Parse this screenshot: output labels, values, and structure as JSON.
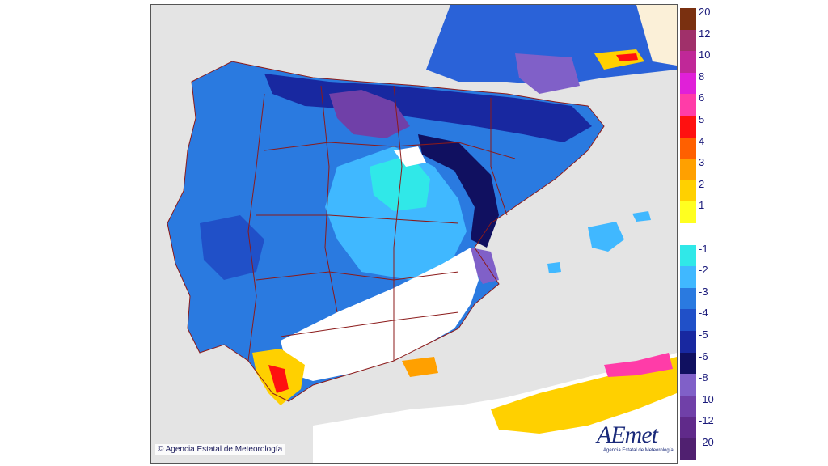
{
  "map": {
    "copyright": "© Agencia Estatal de Meteorología",
    "logo_text": "AEmet",
    "logo_subtitle": "Agencia Estatal de Meteorología"
  },
  "legend": {
    "items": [
      {
        "label": "20",
        "color": "#7a3010"
      },
      {
        "label": "12",
        "color": "#a0306a"
      },
      {
        "label": "10",
        "color": "#c02898"
      },
      {
        "label": "8",
        "color": "#e020d8"
      },
      {
        "label": "6",
        "color": "#ff3ca8"
      },
      {
        "label": "5",
        "color": "#ff1010"
      },
      {
        "label": "4",
        "color": "#ff6000"
      },
      {
        "label": "3",
        "color": "#ffa000"
      },
      {
        "label": "2",
        "color": "#ffd000"
      },
      {
        "label": "1",
        "color": "#ffff20"
      },
      {
        "label": "",
        "color": "#ffffff"
      },
      {
        "label": "-1",
        "color": "#30e8e8"
      },
      {
        "label": "-2",
        "color": "#40b8ff"
      },
      {
        "label": "-3",
        "color": "#2a7ae0"
      },
      {
        "label": "-4",
        "color": "#2050c8"
      },
      {
        "label": "-5",
        "color": "#1828a0"
      },
      {
        "label": "-6",
        "color": "#101060"
      },
      {
        "label": "-8",
        "color": "#8060c8"
      },
      {
        "label": "-10",
        "color": "#7040a8"
      },
      {
        "label": "-12",
        "color": "#602a8a"
      },
      {
        "label": "-20",
        "color": "#502070"
      }
    ]
  }
}
